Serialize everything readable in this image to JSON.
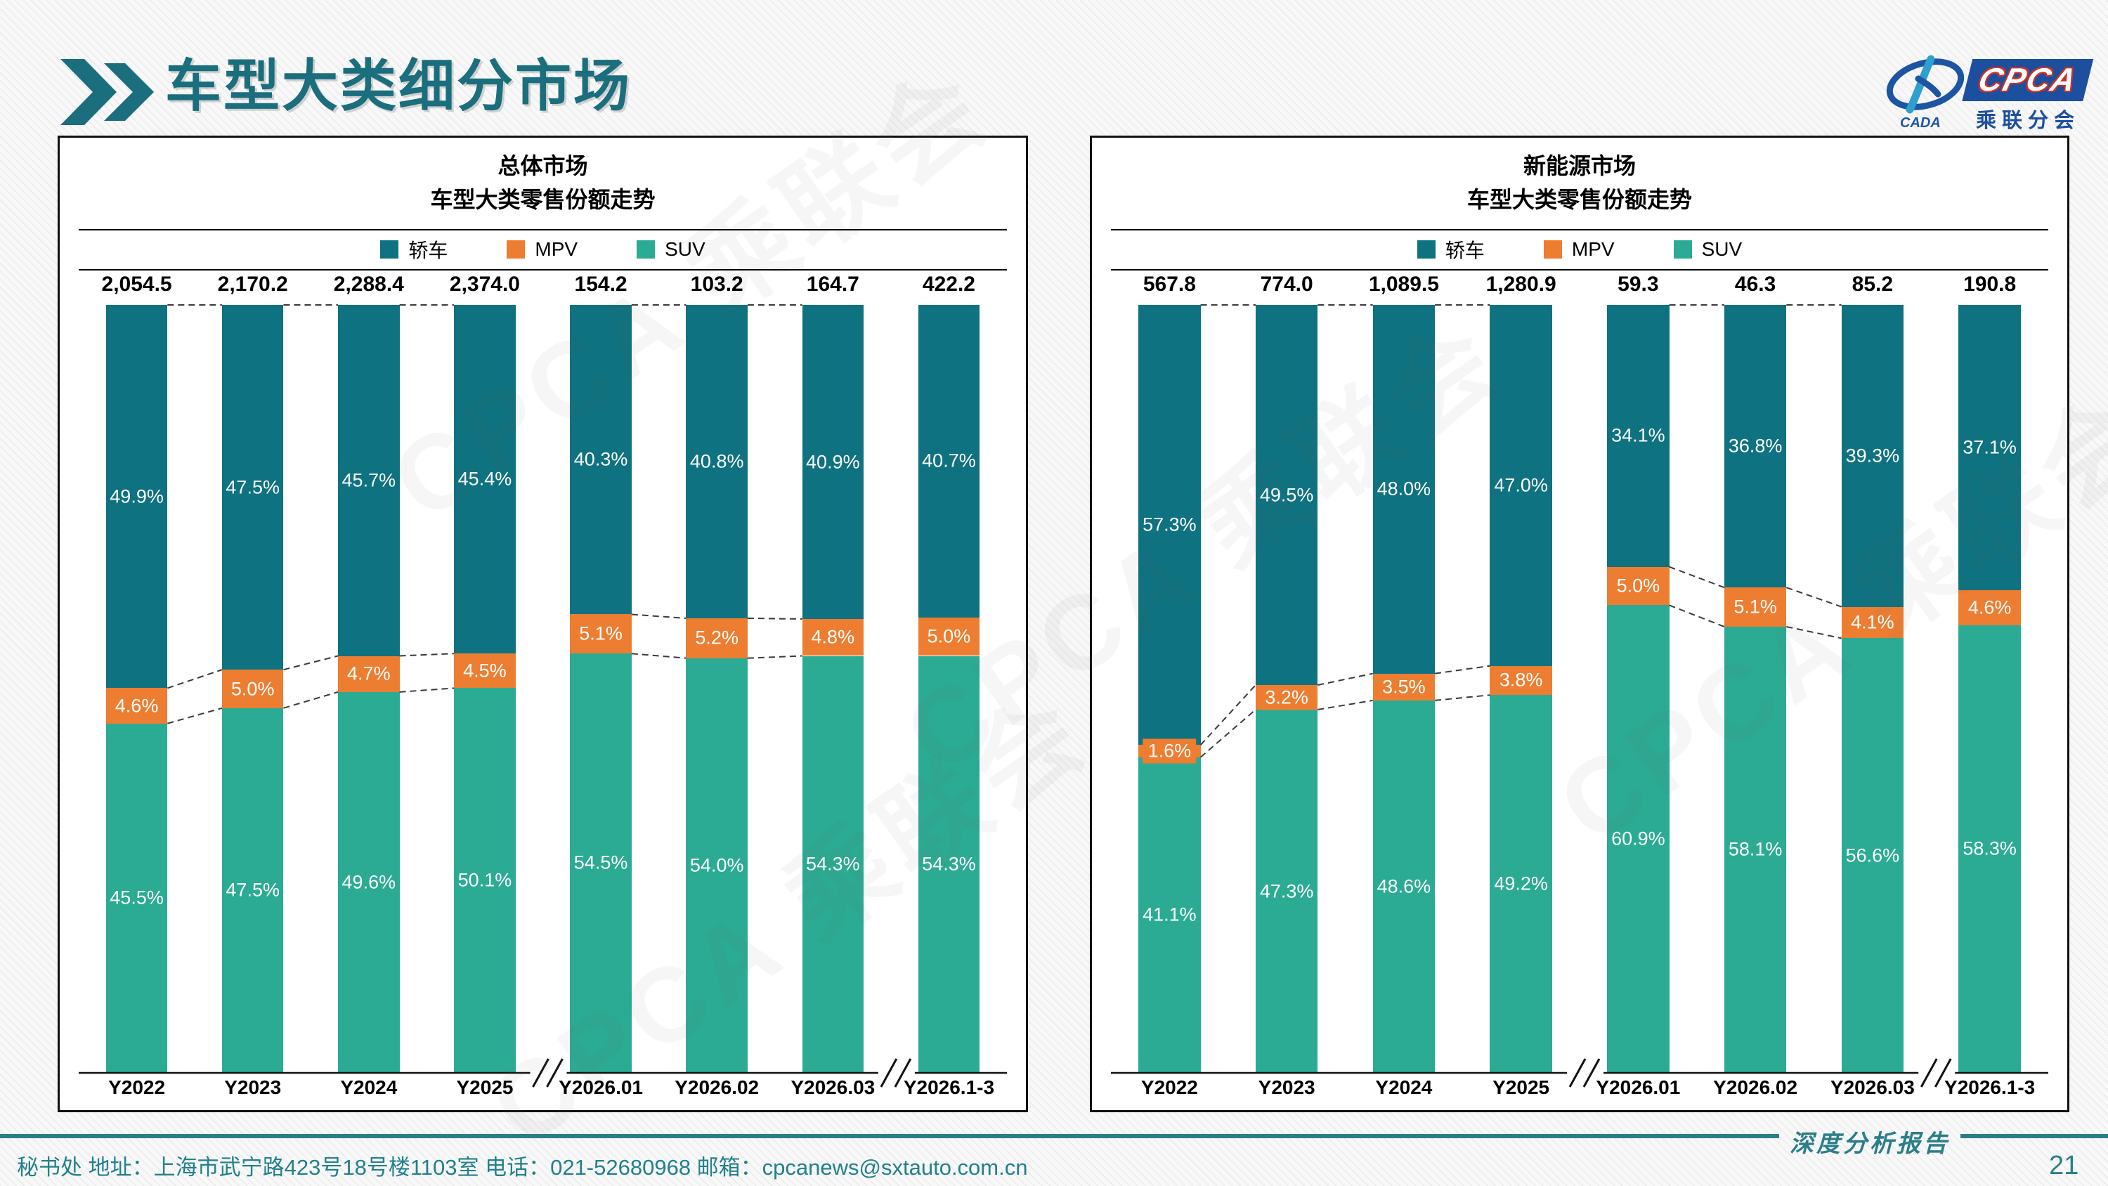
{
  "page": {
    "header": {
      "title": "车型大类细分市场"
    },
    "logo": {
      "cada": "CADA",
      "cpca": "CPCA",
      "subtitle": "乘联分会"
    },
    "watermark": "CPCA 乘联会",
    "footer": {
      "left": "秘书处   地址：上海市武宁路423号18号楼1103室  电话：021-52680968   邮箱：cpcanews@sxtauto.com.cn",
      "report": "深度分析报告",
      "page_number": "21"
    }
  },
  "chart_data": [
    {
      "type": "bar",
      "stacked": true,
      "title_line1": "总体市场",
      "title_line2": "车型大类零售份额走势",
      "unit": "%",
      "ylim": [
        0,
        100
      ],
      "legend_position": "top",
      "categories": [
        "Y2022",
        "Y2023",
        "Y2024",
        "Y2025",
        "Y2026.01",
        "Y2026.02",
        "Y2026.03",
        "Y2026.1-3"
      ],
      "totals": [
        "2,054.5",
        "2,170.2",
        "2,288.4",
        "2,374.0",
        "154.2",
        "103.2",
        "164.7",
        "422.2"
      ],
      "series": [
        {
          "name": "轿车",
          "color": "#0e7280",
          "values": [
            49.9,
            47.5,
            45.7,
            45.4,
            40.3,
            40.8,
            40.9,
            40.7
          ]
        },
        {
          "name": "MPV",
          "color": "#ed7d31",
          "values": [
            4.6,
            5.0,
            4.7,
            4.5,
            5.1,
            5.2,
            4.8,
            5.0
          ]
        },
        {
          "name": "SUV",
          "color": "#2bab93",
          "values": [
            45.5,
            47.5,
            49.6,
            50.1,
            54.5,
            54.0,
            54.3,
            54.3
          ]
        }
      ],
      "axis_breaks_after": [
        3,
        6
      ]
    },
    {
      "type": "bar",
      "stacked": true,
      "title_line1": "新能源市场",
      "title_line2": "车型大类零售份额走势",
      "unit": "%",
      "ylim": [
        0,
        100
      ],
      "legend_position": "top",
      "categories": [
        "Y2022",
        "Y2023",
        "Y2024",
        "Y2025",
        "Y2026.01",
        "Y2026.02",
        "Y2026.03",
        "Y2026.1-3"
      ],
      "totals": [
        "567.8",
        "774.0",
        "1,089.5",
        "1,280.9",
        "59.3",
        "46.3",
        "85.2",
        "190.8"
      ],
      "series": [
        {
          "name": "轿车",
          "color": "#0e7280",
          "values": [
            57.3,
            49.5,
            48.0,
            47.0,
            34.1,
            36.8,
            39.3,
            37.1
          ]
        },
        {
          "name": "MPV",
          "color": "#ed7d31",
          "values": [
            1.6,
            3.2,
            3.5,
            3.8,
            5.0,
            5.1,
            4.1,
            4.6
          ]
        },
        {
          "name": "SUV",
          "color": "#2bab93",
          "values": [
            41.1,
            47.3,
            48.6,
            49.2,
            60.9,
            58.1,
            56.6,
            58.3
          ]
        }
      ],
      "axis_breaks_after": [
        3,
        6
      ]
    }
  ]
}
